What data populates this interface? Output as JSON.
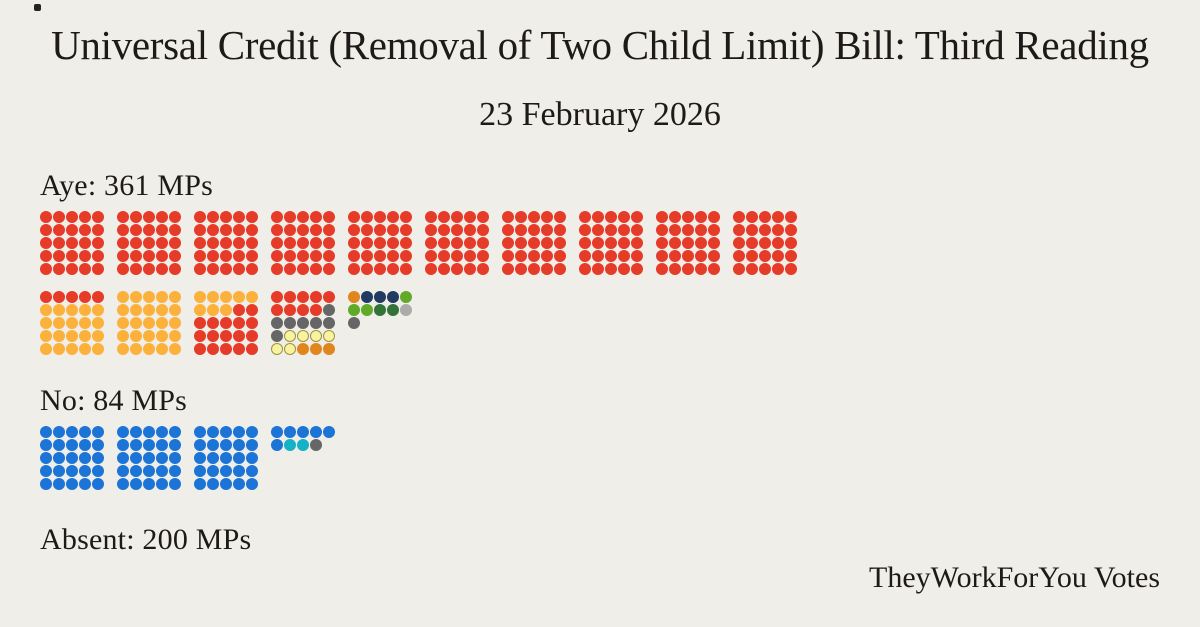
{
  "title": "Universal Credit (Removal of Two Child Limit) Bill: Third Reading",
  "date": "23 February 2026",
  "footer": "TheyWorkForYou Votes",
  "colors": {
    "background": "#f0eee8",
    "text": "#1d1a19",
    "pale_yellow_outline": "#9b943c"
  },
  "palette": {
    "R": "#e63b28",
    "A": "#fbb13c",
    "Y": "#f9f2a0",
    "O": "#e0861c",
    "N": "#203a61",
    "G": "#61a928",
    "D": "#337339",
    "S": "#ababab",
    "X": "#666666",
    "B": "#1b74d6",
    "C": "#14b2c6"
  },
  "outlined_keys": [
    "Y"
  ],
  "sections": [
    {
      "id": "aye",
      "label": "Aye: 361 MPs",
      "rows": [
        {
          "blocks": [
            "RRRRR|RRRRR|RRRRR|RRRRR|RRRRR",
            "RRRRR|RRRRR|RRRRR|RRRRR|RRRRR",
            "RRRRR|RRRRR|RRRRR|RRRRR|RRRRR",
            "RRRRR|RRRRR|RRRRR|RRRRR|RRRRR",
            "RRRRR|RRRRR|RRRRR|RRRRR|RRRRR",
            "RRRRR|RRRRR|RRRRR|RRRRR|RRRRR",
            "RRRRR|RRRRR|RRRRR|RRRRR|RRRRR",
            "RRRRR|RRRRR|RRRRR|RRRRR|RRRRR",
            "RRRRR|RRRRR|RRRRR|RRRRR|RRRRR",
            "RRRRR|RRRRR|RRRRR|RRRRR|RRRRR"
          ]
        },
        {
          "blocks": [
            "RRRRR|AAAAA|AAAAA|AAAAA|AAAAA",
            "AAAAA|AAAAA|AAAAA|AAAAA|AAAAA",
            "AAAAA|AAARR|RRRRR|RRRRR|RRRRR",
            "RRRRR|RRRRX|XXXXX|XYYYY|YYOOO",
            "ONNNG|GGDDS|X"
          ]
        }
      ]
    },
    {
      "id": "no",
      "label": "No: 84 MPs",
      "rows": [
        {
          "blocks": [
            "BBBBB|BBBBB|BBBBB|BBBBB|BBBBB",
            "BBBBB|BBBBB|BBBBB|BBBBB|BBBBB",
            "BBBBB|BBBBB|BBBBB|BBBBB|BBBBB",
            "BBBBB|BCCX"
          ]
        }
      ]
    },
    {
      "id": "absent",
      "label": "Absent: 200 MPs",
      "rows": []
    }
  ],
  "chart_data": {
    "type": "dot-matrix",
    "title": "Universal Credit (Removal of Two Child Limit) Bill: Third Reading",
    "subtitle": "23 February 2026",
    "dot_unit": "1 MP per dot, blocks of 25 (5x5)",
    "groups": [
      {
        "label": "Aye",
        "total_mps": 361,
        "by_color": {
          "red": 281,
          "amber": 53,
          "dark_grey": 8,
          "pale_yellow": 6,
          "orange": 4,
          "navy": 3,
          "green": 3,
          "dark_green": 2,
          "silver": 1
        }
      },
      {
        "label": "No",
        "total_mps": 84,
        "by_color": {
          "blue": 81,
          "cyan": 2,
          "dark_grey": 1
        }
      },
      {
        "label": "Absent",
        "total_mps": 200,
        "by_color": {}
      }
    ],
    "legend_position": "none",
    "source_text": "TheyWorkForYou Votes"
  }
}
